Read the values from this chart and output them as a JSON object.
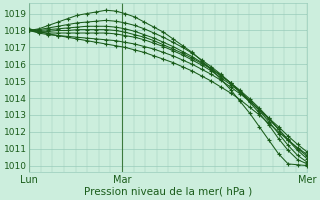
{
  "title": "Pression niveau de la mer( hPa )",
  "ylabel_values": [
    1010,
    1011,
    1012,
    1013,
    1014,
    1015,
    1016,
    1017,
    1018,
    1019
  ],
  "ylim": [
    1009.6,
    1019.6
  ],
  "xlim": [
    0,
    48
  ],
  "bg_color": "#cceedd",
  "grid_color": "#99ccbb",
  "line_color": "#1a5c1a",
  "day_ticks": [
    0,
    16,
    48
  ],
  "day_labels": [
    "Lun",
    "Mar",
    "Mer"
  ],
  "series": [
    [
      1018.0,
      1018.1,
      1018.3,
      1018.5,
      1018.7,
      1018.9,
      1019.0,
      1019.1,
      1019.2,
      1019.15,
      1019.0,
      1018.8,
      1018.5,
      1018.2,
      1017.9,
      1017.5,
      1017.1,
      1016.7,
      1016.2,
      1015.7,
      1015.1,
      1014.5,
      1013.8,
      1013.1,
      1012.3,
      1011.5,
      1010.7,
      1010.1,
      1010.05,
      1010.0
    ],
    [
      1018.0,
      1018.05,
      1018.15,
      1018.25,
      1018.35,
      1018.45,
      1018.5,
      1018.55,
      1018.6,
      1018.55,
      1018.45,
      1018.3,
      1018.1,
      1017.85,
      1017.6,
      1017.3,
      1017.0,
      1016.65,
      1016.25,
      1015.85,
      1015.4,
      1014.9,
      1014.35,
      1013.75,
      1013.1,
      1012.4,
      1011.6,
      1010.9,
      1010.35,
      1010.1
    ],
    [
      1018.0,
      1018.0,
      1018.05,
      1018.1,
      1018.15,
      1018.2,
      1018.25,
      1018.25,
      1018.25,
      1018.2,
      1018.1,
      1017.95,
      1017.75,
      1017.55,
      1017.3,
      1017.05,
      1016.75,
      1016.45,
      1016.1,
      1015.75,
      1015.35,
      1014.9,
      1014.4,
      1013.85,
      1013.25,
      1012.6,
      1011.9,
      1011.2,
      1010.6,
      1010.2
    ],
    [
      1018.0,
      1017.95,
      1017.95,
      1018.0,
      1018.0,
      1018.05,
      1018.05,
      1018.05,
      1018.05,
      1018.0,
      1017.9,
      1017.75,
      1017.6,
      1017.4,
      1017.15,
      1016.9,
      1016.65,
      1016.35,
      1016.05,
      1015.7,
      1015.3,
      1014.9,
      1014.45,
      1013.95,
      1013.4,
      1012.8,
      1012.15,
      1011.5,
      1010.9,
      1010.4
    ],
    [
      1018.0,
      1017.9,
      1017.85,
      1017.85,
      1017.85,
      1017.85,
      1017.85,
      1017.85,
      1017.85,
      1017.8,
      1017.7,
      1017.6,
      1017.45,
      1017.25,
      1017.05,
      1016.8,
      1016.55,
      1016.25,
      1015.95,
      1015.6,
      1015.2,
      1014.8,
      1014.35,
      1013.85,
      1013.3,
      1012.75,
      1012.15,
      1011.55,
      1011.0,
      1010.55
    ],
    [
      1018.0,
      1017.85,
      1017.75,
      1017.7,
      1017.65,
      1017.6,
      1017.55,
      1017.5,
      1017.45,
      1017.4,
      1017.3,
      1017.2,
      1017.05,
      1016.9,
      1016.7,
      1016.5,
      1016.25,
      1016.0,
      1015.7,
      1015.4,
      1015.05,
      1014.65,
      1014.25,
      1013.8,
      1013.3,
      1012.8,
      1012.3,
      1011.75,
      1011.25,
      1010.8
    ],
    [
      1018.1,
      1017.95,
      1017.8,
      1017.7,
      1017.6,
      1017.5,
      1017.4,
      1017.3,
      1017.2,
      1017.1,
      1017.0,
      1016.85,
      1016.7,
      1016.5,
      1016.3,
      1016.1,
      1015.85,
      1015.6,
      1015.3,
      1015.0,
      1014.65,
      1014.3,
      1013.9,
      1013.45,
      1013.0,
      1012.5,
      1012.0,
      1011.5,
      1011.05,
      1010.65
    ]
  ]
}
